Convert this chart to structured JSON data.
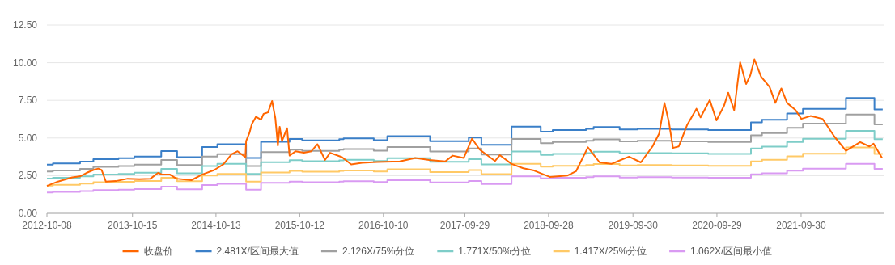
{
  "chart_data": {
    "type": "line",
    "legend": "bottom",
    "grid": "y",
    "xlim": [
      "2012-10-08",
      "2022-09-24"
    ],
    "ylim": [
      0,
      12.5
    ],
    "xticks": [
      "2012-10-08",
      "2013-10-15",
      "2014-10-13",
      "2015-10-12",
      "2016-10-10",
      "2017-09-29",
      "2018-09-28",
      "2019-09-30",
      "2020-09-29",
      "2021-09-30"
    ],
    "yticks": [
      {
        "value": 0,
        "label": "0.00"
      },
      {
        "value": 2.5,
        "label": "2.50"
      },
      {
        "value": 5,
        "label": "5.00"
      },
      {
        "value": 7.5,
        "label": "7.50"
      },
      {
        "value": 10,
        "label": "10.00"
      },
      {
        "value": 12.5,
        "label": "12.50"
      }
    ],
    "series": [
      {
        "name": "收盘价",
        "color": "#ff6600",
        "x": [
          "2012-10-08",
          "2012-11-25",
          "2013-01-26",
          "2013-02-28",
          "2013-03-29",
          "2013-04-27",
          "2013-05-19",
          "2013-06-03",
          "2013-06-21",
          "2013-08-04",
          "2013-09-24",
          "2013-11-14",
          "2014-01-01",
          "2014-02-03",
          "2014-02-21",
          "2014-03-26",
          "2014-04-24",
          "2014-06-28",
          "2014-08-15",
          "2014-10-05",
          "2014-11-14",
          "2014-12-20",
          "2015-01-15",
          "2015-02-18",
          "2015-02-21",
          "2015-03-08",
          "2015-03-18",
          "2015-04-05",
          "2015-04-27",
          "2015-05-08",
          "2015-05-27",
          "2015-06-14",
          "2015-06-28",
          "2015-07-09",
          "2015-07-17",
          "2015-07-27",
          "2015-08-18",
          "2015-08-29",
          "2015-09-24",
          "2015-10-30",
          "2015-12-02",
          "2015-12-28",
          "2016-01-30",
          "2016-02-21",
          "2016-04-13",
          "2016-05-23",
          "2016-07-09",
          "2016-09-13",
          "2016-12-20",
          "2017-02-25",
          "2017-04-27",
          "2017-07-06",
          "2017-08-07",
          "2017-09-24",
          "2017-10-30",
          "2017-12-02",
          "2018-02-07",
          "2018-02-28",
          "2018-04-20",
          "2018-06-10",
          "2018-07-27",
          "2018-10-05",
          "2018-12-20",
          "2019-01-26",
          "2019-03-18",
          "2019-05-08",
          "2019-06-28",
          "2019-09-13",
          "2019-11-03",
          "2019-12-24",
          "2020-01-22",
          "2020-02-14",
          "2020-03-04",
          "2020-03-22",
          "2020-04-16",
          "2020-05-23",
          "2020-07-02",
          "2020-07-20",
          "2020-08-29",
          "2020-09-27",
          "2020-10-30",
          "2020-11-17",
          "2020-12-13",
          "2021-01-08",
          "2021-02-03",
          "2021-02-21",
          "2021-03-11",
          "2021-04-09",
          "2021-05-16",
          "2021-06-10",
          "2021-07-06",
          "2021-07-31",
          "2021-09-06",
          "2021-10-01",
          "2021-11-10",
          "2022-01-01",
          "2022-02-21",
          "2022-04-13",
          "2022-06-14",
          "2022-07-24",
          "2022-08-11",
          "2022-09-17"
        ],
        "values": [
          1.82,
          2.11,
          2.39,
          2.45,
          2.68,
          2.87,
          2.97,
          2.87,
          2.11,
          2.14,
          2.3,
          2.26,
          2.3,
          2.68,
          2.58,
          2.58,
          2.3,
          2.2,
          2.58,
          2.87,
          3.25,
          3.92,
          4.12,
          3.73,
          4.79,
          5.36,
          5.93,
          6.41,
          6.22,
          6.6,
          6.7,
          7.46,
          6.32,
          4.5,
          5.74,
          4.79,
          5.65,
          3.83,
          4.12,
          4.02,
          4.12,
          4.59,
          3.54,
          4.02,
          3.73,
          3.25,
          3.35,
          3.41,
          3.45,
          3.67,
          3.54,
          3.45,
          3.83,
          3.67,
          4.96,
          4.24,
          3.47,
          3.86,
          3.28,
          2.99,
          2.84,
          2.41,
          2.51,
          2.8,
          4.38,
          3.38,
          3.28,
          3.76,
          3.38,
          4.44,
          5.3,
          7.33,
          6.08,
          4.34,
          4.44,
          5.88,
          6.94,
          6.37,
          7.52,
          6.17,
          7.14,
          8.01,
          6.85,
          10.03,
          8.58,
          9.16,
          10.22,
          9.07,
          8.39,
          7.33,
          8.29,
          7.33,
          6.85,
          6.27,
          6.46,
          6.27,
          5.11,
          4.15,
          4.73,
          4.44,
          4.63,
          3.67
        ]
      },
      {
        "name": "2.481X/区间最大值",
        "type": "step",
        "color": "#3a7fc8",
        "values": [
          3.23,
          3.31,
          3.44,
          3.6,
          3.66,
          3.77,
          4.13,
          3.73,
          4.4,
          4.59,
          3.67,
          4.75,
          4.94,
          4.84,
          4.92,
          4.98,
          4.86,
          5.13,
          4.79,
          5.03,
          4.55,
          5.75,
          5.42,
          5.52,
          5.61,
          5.73,
          5.57,
          5.61,
          5.57,
          5.52,
          6.04,
          6.21,
          6.62,
          6.94,
          7.66,
          6.89,
          6.89
        ]
      },
      {
        "name": "2.126X/75%分位",
        "type": "step",
        "color": "#a0a0a0",
        "values": [
          2.77,
          2.84,
          2.95,
          3.08,
          3.14,
          3.23,
          3.54,
          3.2,
          3.77,
          3.93,
          3.14,
          4.07,
          4.23,
          4.15,
          4.22,
          4.27,
          4.16,
          4.4,
          4.11,
          4.31,
          3.9,
          4.93,
          4.65,
          4.73,
          4.81,
          4.91,
          4.77,
          4.81,
          4.77,
          4.73,
          5.18,
          5.32,
          5.67,
          5.95,
          6.56,
          5.9,
          5.9
        ]
      },
      {
        "name": "1.771X/50%分位",
        "type": "step",
        "color": "#7ecdc8",
        "values": [
          2.31,
          2.36,
          2.46,
          2.57,
          2.61,
          2.69,
          2.95,
          2.66,
          3.14,
          3.28,
          2.62,
          3.39,
          3.53,
          3.46,
          3.51,
          3.55,
          3.47,
          3.66,
          3.42,
          3.59,
          3.25,
          4.11,
          3.87,
          3.94,
          4.0,
          4.09,
          3.98,
          4.0,
          3.98,
          3.94,
          4.31,
          4.43,
          4.73,
          4.95,
          5.47,
          4.92,
          4.92
        ]
      },
      {
        "name": "1.417X/25%分位",
        "type": "step",
        "color": "#ffc966",
        "values": [
          1.84,
          1.89,
          1.97,
          2.06,
          2.09,
          2.15,
          2.36,
          2.13,
          2.51,
          2.62,
          2.1,
          2.71,
          2.82,
          2.76,
          2.81,
          2.84,
          2.78,
          2.93,
          2.74,
          2.87,
          2.6,
          3.28,
          3.1,
          3.15,
          3.2,
          3.27,
          3.18,
          3.2,
          3.18,
          3.15,
          3.45,
          3.55,
          3.78,
          3.96,
          4.37,
          3.94,
          3.94
        ]
      },
      {
        "name": "1.062X/区间最小值",
        "type": "step",
        "color": "#d99af2",
        "values": [
          1.38,
          1.42,
          1.47,
          1.54,
          1.57,
          1.61,
          1.77,
          1.6,
          1.88,
          1.96,
          1.57,
          2.03,
          2.11,
          2.07,
          2.11,
          2.13,
          2.08,
          2.2,
          2.05,
          2.15,
          1.95,
          2.46,
          2.32,
          2.36,
          2.4,
          2.45,
          2.38,
          2.4,
          2.38,
          2.36,
          2.59,
          2.66,
          2.83,
          2.97,
          3.28,
          2.95,
          2.95
        ]
      }
    ],
    "x": [
      "2012-10-08",
      "2012-11-03",
      "2013-03-01",
      "2013-04-28",
      "2013-08-15",
      "2013-10-23",
      "2014-02-17",
      "2014-04-27",
      "2014-08-14",
      "2014-10-19",
      "2015-02-21",
      "2015-04-27",
      "2015-08-29",
      "2015-10-23",
      "2016-04-01",
      "2016-04-20",
      "2016-08-29",
      "2016-10-27",
      "2017-05-01",
      "2017-10-16",
      "2017-12-10",
      "2018-04-20",
      "2018-08-25",
      "2018-10-16",
      "2019-03-10",
      "2019-04-12",
      "2019-08-03",
      "2019-10-20",
      "2020-03-17",
      "2020-08-22",
      "2021-02-24",
      "2021-04-13",
      "2021-07-31",
      "2021-10-08",
      "2022-04-13",
      "2022-08-15",
      "2022-09-20"
    ]
  }
}
